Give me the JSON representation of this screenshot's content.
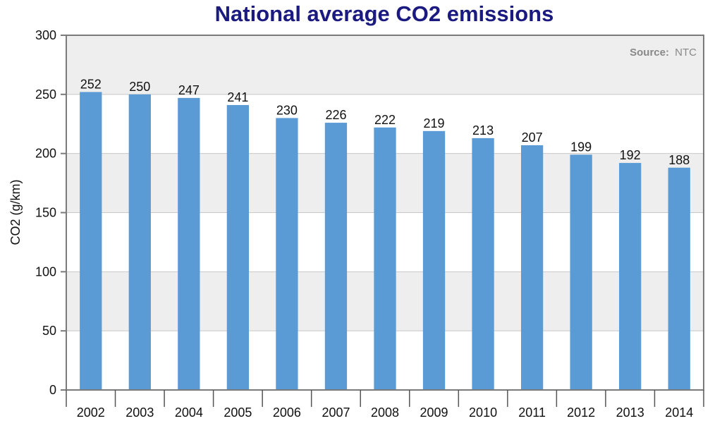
{
  "chart_data": {
    "type": "bar",
    "title": "National average CO2 emissions",
    "ylabel": "CO2 (g/km)",
    "xlabel": "",
    "source_label": "Source:",
    "source_value": "NTC",
    "categories": [
      "2002",
      "2003",
      "2004",
      "2005",
      "2006",
      "2007",
      "2008",
      "2009",
      "2010",
      "2011",
      "2012",
      "2013",
      "2014"
    ],
    "values": [
      252,
      250,
      247,
      241,
      230,
      226,
      222,
      219,
      213,
      207,
      199,
      192,
      188
    ],
    "ylim": [
      0,
      300
    ],
    "yticks": [
      0,
      50,
      100,
      150,
      200,
      250,
      300
    ],
    "grid": true,
    "bar_color": "#5b9bd5",
    "title_color": "#1a1a80",
    "band_color": "#eeeeee"
  }
}
